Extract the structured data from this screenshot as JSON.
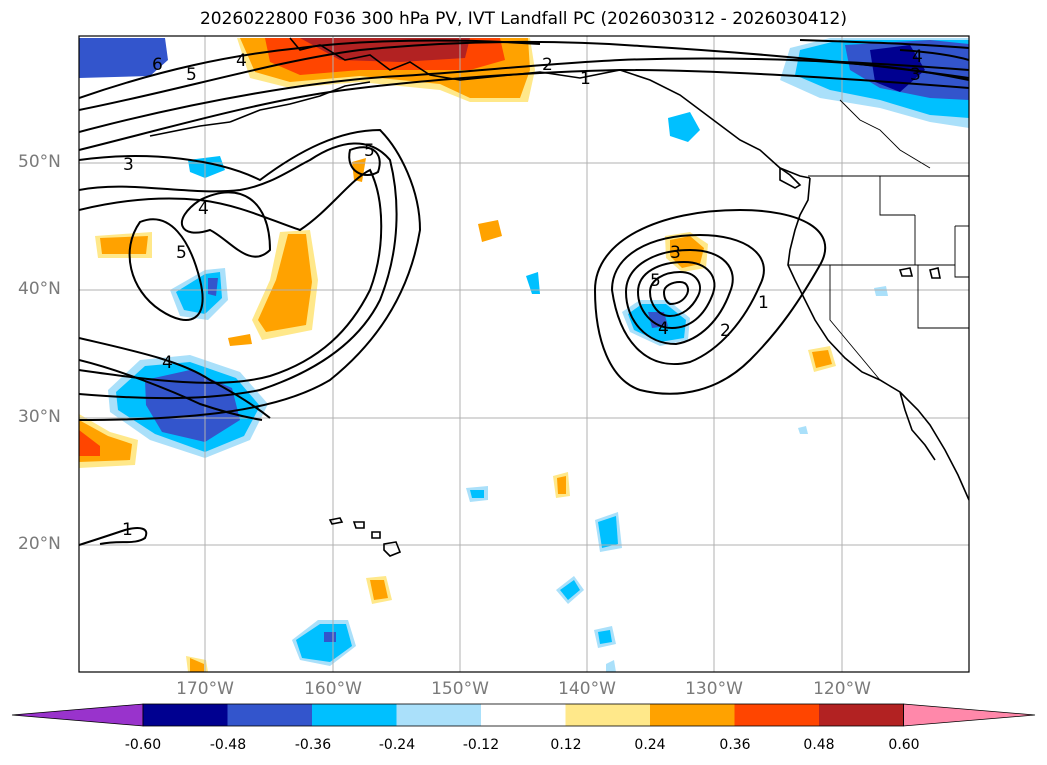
{
  "title": "2026022800 F036 300 hPa PV, IVT Landfall PC (2026030312 - 2026030412)",
  "lat_labels": [
    "50°N",
    "40°N",
    "30°N",
    "20°N"
  ],
  "lon_labels": [
    "170°W",
    "160°W",
    "150°W",
    "140°W",
    "130°W",
    "120°W"
  ],
  "contour_labels": [
    "6",
    "5",
    "4",
    "2",
    "1",
    "4",
    "3",
    "5",
    "3",
    "4",
    "5",
    "4",
    "3",
    "5",
    "4",
    "2",
    "1",
    "1"
  ],
  "colorbar": {
    "ticks": [
      "-0.60",
      "-0.48",
      "-0.36",
      "-0.24",
      "-0.12",
      "0.12",
      "0.24",
      "0.36",
      "0.48",
      "0.60"
    ],
    "colors": [
      "#9933cc",
      "#000090",
      "#3355cc",
      "#00c0ff",
      "#aae0fa",
      "#ffffff",
      "#ffe88a",
      "#ffa200",
      "#ff4500",
      "#b22222",
      "#ff88aa"
    ]
  }
}
